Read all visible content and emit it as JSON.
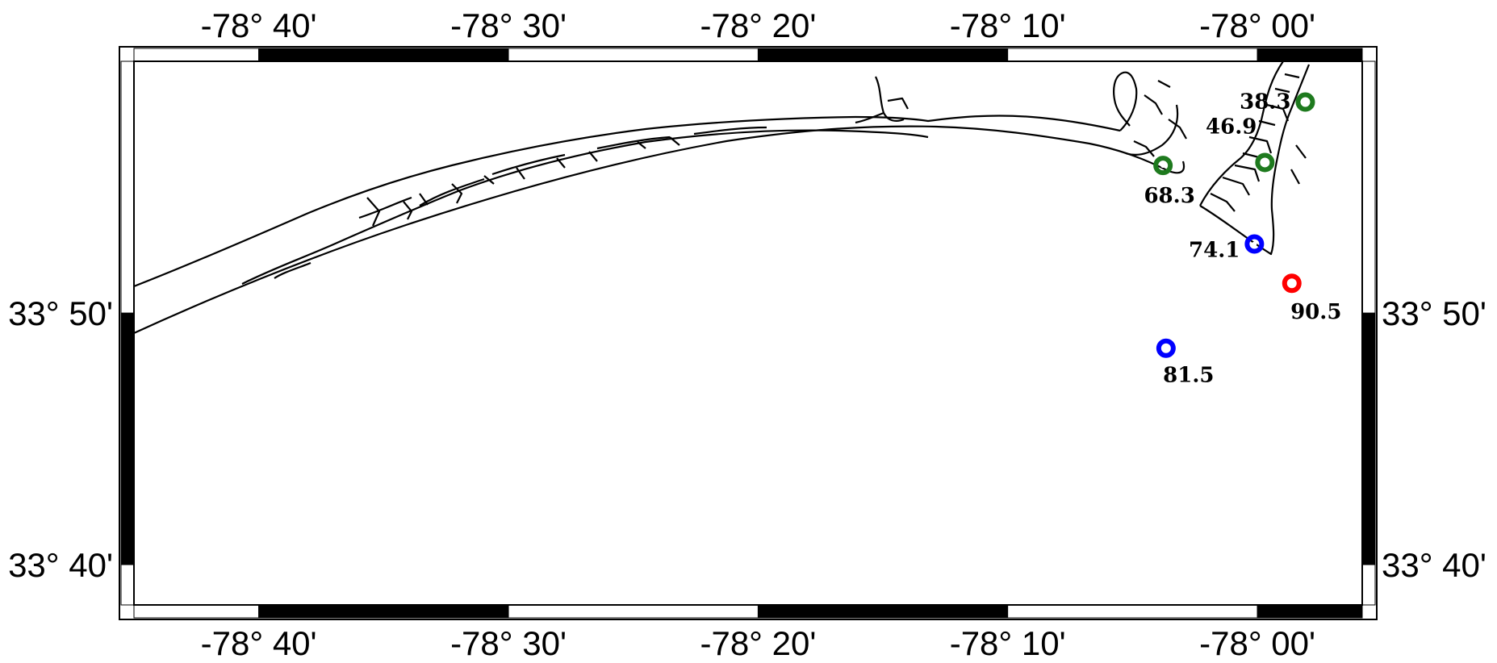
{
  "map": {
    "longitude_ticks": [
      {
        "value": -78.6667,
        "label": "-78° 40'"
      },
      {
        "value": -78.5,
        "label": "-78° 30'"
      },
      {
        "value": -78.3333,
        "label": "-78° 20'"
      },
      {
        "value": -78.1667,
        "label": "-78° 10'"
      },
      {
        "value": -78.0,
        "label": "-78° 00'"
      }
    ],
    "latitude_ticks": [
      {
        "value": 33.8333,
        "label": "33° 50'"
      },
      {
        "value": 33.6667,
        "label": "33° 40'"
      }
    ],
    "extent": {
      "lon_min": -78.75,
      "lon_max": -77.93,
      "lat_min": 33.64,
      "lat_max": 34.0
    },
    "colors": {
      "green": "#1e7a1e",
      "blue": "#0000ff",
      "red": "#ff0000",
      "frame": "#000000"
    },
    "stations": [
      {
        "label": "38.3",
        "lon": -77.968,
        "lat": 33.973,
        "color_key": "green"
      },
      {
        "label": "46.9",
        "lon": -77.995,
        "lat": 33.933,
        "color_key": "green"
      },
      {
        "label": "68.3",
        "lon": -78.063,
        "lat": 33.931,
        "color_key": "green"
      },
      {
        "label": "74.1",
        "lon": -78.002,
        "lat": 33.879,
        "color_key": "blue"
      },
      {
        "label": "90.5",
        "lon": -77.977,
        "lat": 33.853,
        "color_key": "red"
      },
      {
        "label": "81.5",
        "lon": -78.061,
        "lat": 33.81,
        "color_key": "blue"
      }
    ]
  }
}
